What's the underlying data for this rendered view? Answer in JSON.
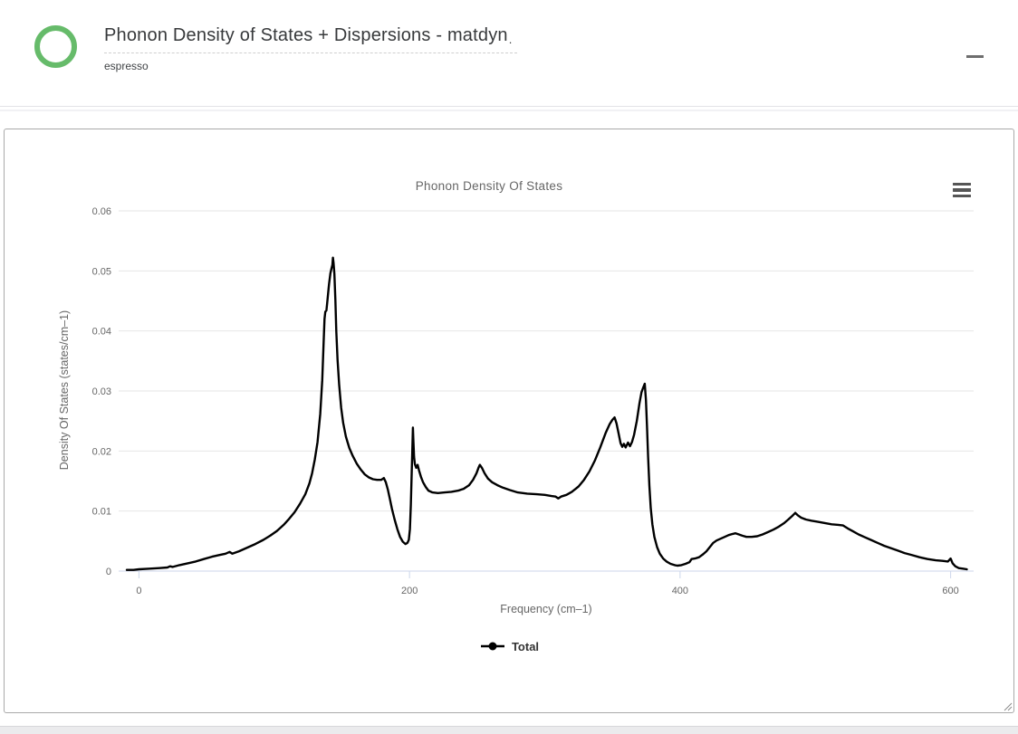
{
  "header": {
    "title": "Phonon Density of States + Dispersions - matdyn",
    "title_cursor": ".",
    "subtitle": "espresso"
  },
  "colors": {
    "accent_green": "#66bb6a",
    "curve": "#000000",
    "grid": "#e6e6e6",
    "axis_line": "#ccd6eb",
    "tick_label": "#666666",
    "axis_title": "#666666",
    "chart_title": "#666666",
    "legend_text": "#333333",
    "panel_border": "#a9a9a9",
    "hamburger": "#555555"
  },
  "chart_data": {
    "type": "line",
    "title": "Phonon Density Of States",
    "xlabel": "Frequency (cm–1)",
    "ylabel": "Density Of States (states/cm–1)",
    "xlim": [
      -15,
      617
    ],
    "ylim": [
      0,
      0.06
    ],
    "xticks": [
      0,
      200,
      400,
      600
    ],
    "yticks": [
      0,
      0.01,
      0.02,
      0.03,
      0.04,
      0.05,
      0.06
    ],
    "grid": true,
    "legend_position": "bottom-center",
    "series": [
      {
        "name": "Total",
        "color": "#000000",
        "points": [
          [
            -9,
            0.0002
          ],
          [
            -4,
            0.0002
          ],
          [
            0,
            0.0003
          ],
          [
            8,
            0.0004
          ],
          [
            15,
            0.0005
          ],
          [
            21,
            0.0006
          ],
          [
            23,
            0.0008
          ],
          [
            25,
            0.0007
          ],
          [
            30,
            0.001
          ],
          [
            36,
            0.0013
          ],
          [
            42,
            0.0016
          ],
          [
            48,
            0.002
          ],
          [
            54,
            0.0024
          ],
          [
            60,
            0.0027
          ],
          [
            64,
            0.0029
          ],
          [
            67,
            0.0032
          ],
          [
            69,
            0.0029
          ],
          [
            74,
            0.0033
          ],
          [
            80,
            0.0039
          ],
          [
            86,
            0.0045
          ],
          [
            92,
            0.0052
          ],
          [
            97,
            0.0059
          ],
          [
            102,
            0.0067
          ],
          [
            107,
            0.0077
          ],
          [
            111,
            0.0087
          ],
          [
            115,
            0.0098
          ],
          [
            119,
            0.0112
          ],
          [
            123,
            0.0128
          ],
          [
            126,
            0.0146
          ],
          [
            128,
            0.0163
          ],
          [
            130,
            0.0186
          ],
          [
            132,
            0.0215
          ],
          [
            134,
            0.0262
          ],
          [
            135.5,
            0.0318
          ],
          [
            136.5,
            0.038
          ],
          [
            137.2,
            0.042
          ],
          [
            137.8,
            0.0432
          ],
          [
            138.6,
            0.0434
          ],
          [
            139.4,
            0.0452
          ],
          [
            140.5,
            0.0478
          ],
          [
            141.5,
            0.0496
          ],
          [
            142.3,
            0.0504
          ],
          [
            143,
            0.051
          ],
          [
            143.4,
            0.0522
          ],
          [
            143.9,
            0.0513
          ],
          [
            144.5,
            0.0495
          ],
          [
            145.2,
            0.0452
          ],
          [
            145.9,
            0.04
          ],
          [
            146.8,
            0.0352
          ],
          [
            148,
            0.031
          ],
          [
            149.5,
            0.0272
          ],
          [
            151,
            0.0247
          ],
          [
            153,
            0.0224
          ],
          [
            155.5,
            0.0205
          ],
          [
            158,
            0.0192
          ],
          [
            161,
            0.0179
          ],
          [
            164,
            0.0169
          ],
          [
            167,
            0.0161
          ],
          [
            170,
            0.0156
          ],
          [
            173,
            0.0153
          ],
          [
            176,
            0.0152
          ],
          [
            179,
            0.0152
          ],
          [
            181,
            0.0155
          ],
          [
            182.5,
            0.0148
          ],
          [
            184,
            0.0136
          ],
          [
            185.5,
            0.012
          ],
          [
            187,
            0.0104
          ],
          [
            189,
            0.0086
          ],
          [
            191,
            0.007
          ],
          [
            193,
            0.0057
          ],
          [
            195,
            0.0049
          ],
          [
            197,
            0.0045
          ],
          [
            198.5,
            0.0047
          ],
          [
            199.5,
            0.0052
          ],
          [
            200.3,
            0.007
          ],
          [
            201,
            0.011
          ],
          [
            201.6,
            0.016
          ],
          [
            202.1,
            0.0205
          ],
          [
            202.5,
            0.0239
          ],
          [
            202.9,
            0.0215
          ],
          [
            203.4,
            0.019
          ],
          [
            204,
            0.0178
          ],
          [
            205,
            0.0172
          ],
          [
            206,
            0.0177
          ],
          [
            207,
            0.0168
          ],
          [
            208.5,
            0.0157
          ],
          [
            210,
            0.0148
          ],
          [
            212,
            0.014
          ],
          [
            214,
            0.0134
          ],
          [
            217,
            0.0131
          ],
          [
            221,
            0.013
          ],
          [
            226,
            0.0131
          ],
          [
            231,
            0.0132
          ],
          [
            236,
            0.0134
          ],
          [
            240,
            0.0137
          ],
          [
            244,
            0.0143
          ],
          [
            247,
            0.0152
          ],
          [
            249.5,
            0.0163
          ],
          [
            251,
            0.0172
          ],
          [
            252,
            0.0177
          ],
          [
            253.5,
            0.0172
          ],
          [
            255.5,
            0.0163
          ],
          [
            258,
            0.0154
          ],
          [
            261,
            0.0148
          ],
          [
            265,
            0.0143
          ],
          [
            269,
            0.0139
          ],
          [
            274,
            0.0135
          ],
          [
            280,
            0.0131
          ],
          [
            287,
            0.0129
          ],
          [
            294,
            0.0128
          ],
          [
            300,
            0.0127
          ],
          [
            305,
            0.0125
          ],
          [
            308,
            0.0124
          ],
          [
            310,
            0.0121
          ],
          [
            312,
            0.0124
          ],
          [
            316,
            0.0127
          ],
          [
            320,
            0.0132
          ],
          [
            325,
            0.0141
          ],
          [
            329,
            0.0152
          ],
          [
            333,
            0.0166
          ],
          [
            337,
            0.0184
          ],
          [
            341,
            0.0206
          ],
          [
            345,
            0.023
          ],
          [
            348,
            0.0245
          ],
          [
            350,
            0.0252
          ],
          [
            351.6,
            0.0256
          ],
          [
            353,
            0.0246
          ],
          [
            354.5,
            0.023
          ],
          [
            356,
            0.0213
          ],
          [
            357.3,
            0.0207
          ],
          [
            358.5,
            0.0212
          ],
          [
            359.8,
            0.0206
          ],
          [
            361.5,
            0.0214
          ],
          [
            363,
            0.0208
          ],
          [
            364.5,
            0.0215
          ],
          [
            366,
            0.0227
          ],
          [
            368,
            0.025
          ],
          [
            370,
            0.028
          ],
          [
            371.5,
            0.0298
          ],
          [
            373,
            0.0307
          ],
          [
            373.9,
            0.0312
          ],
          [
            374.8,
            0.0285
          ],
          [
            375.6,
            0.024
          ],
          [
            376.4,
            0.019
          ],
          [
            377.3,
            0.0142
          ],
          [
            378.3,
            0.0105
          ],
          [
            379.5,
            0.0078
          ],
          [
            381,
            0.0057
          ],
          [
            383,
            0.004
          ],
          [
            385,
            0.0029
          ],
          [
            387.5,
            0.0021
          ],
          [
            390,
            0.0016
          ],
          [
            393,
            0.0012
          ],
          [
            396,
            0.001
          ],
          [
            398,
            0.0009
          ],
          [
            401,
            0.001
          ],
          [
            404,
            0.0012
          ],
          [
            407,
            0.0015
          ],
          [
            408.5,
            0.002
          ],
          [
            411,
            0.0021
          ],
          [
            414,
            0.0023
          ],
          [
            417,
            0.0028
          ],
          [
            419.5,
            0.0033
          ],
          [
            422,
            0.004
          ],
          [
            424.5,
            0.0047
          ],
          [
            427,
            0.0051
          ],
          [
            430,
            0.0054
          ],
          [
            433,
            0.0057
          ],
          [
            436,
            0.006
          ],
          [
            439,
            0.0062
          ],
          [
            441,
            0.0063
          ],
          [
            443.5,
            0.0061
          ],
          [
            446,
            0.0059
          ],
          [
            449,
            0.0057
          ],
          [
            453,
            0.0057
          ],
          [
            457,
            0.0058
          ],
          [
            461,
            0.0061
          ],
          [
            465,
            0.0065
          ],
          [
            469,
            0.0069
          ],
          [
            473,
            0.0074
          ],
          [
            477,
            0.008
          ],
          [
            480,
            0.0086
          ],
          [
            483,
            0.0092
          ],
          [
            485.2,
            0.0097
          ],
          [
            487,
            0.0093
          ],
          [
            489.5,
            0.0089
          ],
          [
            493,
            0.0086
          ],
          [
            497,
            0.0084
          ],
          [
            502,
            0.0082
          ],
          [
            507,
            0.008
          ],
          [
            512,
            0.0078
          ],
          [
            517,
            0.0077
          ],
          [
            520.5,
            0.0076
          ],
          [
            524,
            0.0071
          ],
          [
            528,
            0.0066
          ],
          [
            532,
            0.0061
          ],
          [
            536,
            0.0057
          ],
          [
            541,
            0.0052
          ],
          [
            546,
            0.0047
          ],
          [
            551,
            0.0042
          ],
          [
            556,
            0.0038
          ],
          [
            561,
            0.0034
          ],
          [
            566,
            0.003
          ],
          [
            571,
            0.0027
          ],
          [
            577,
            0.0023
          ],
          [
            583,
            0.002
          ],
          [
            589,
            0.0018
          ],
          [
            594,
            0.0017
          ],
          [
            598,
            0.0016
          ],
          [
            600,
            0.0021
          ],
          [
            601.5,
            0.0013
          ],
          [
            603.5,
            0.0008
          ],
          [
            606,
            0.0005
          ],
          [
            609,
            0.0004
          ],
          [
            612,
            0.0003
          ]
        ]
      }
    ]
  }
}
